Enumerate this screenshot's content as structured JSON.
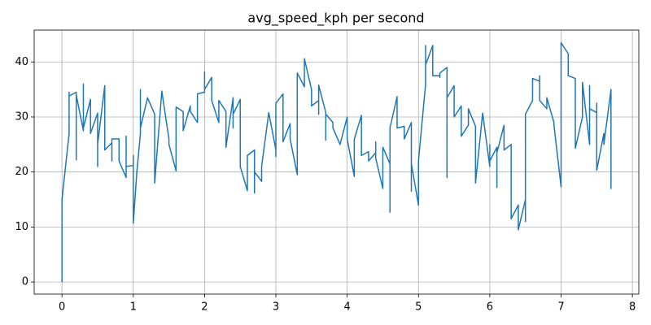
{
  "chart_data": {
    "type": "line",
    "title": "avg_speed_kph per second",
    "x": [
      0,
      0,
      0.1,
      0.1,
      0.1,
      0.2,
      0.2,
      0.2,
      0.3,
      0.3,
      0.3,
      0.4,
      0.4,
      0.5,
      0.5,
      0.5,
      0.6,
      0.6,
      0.7,
      0.7,
      0.7,
      0.8,
      0.8,
      0.9,
      0.9,
      0.9,
      1.0,
      1.0,
      1.0,
      1.05,
      1.1,
      1.1,
      1.1,
      1.2,
      1.3,
      1.3,
      1.4,
      1.5,
      1.5,
      1.6,
      1.6,
      1.7,
      1.7,
      1.8,
      1.8,
      1.9,
      1.9,
      2.0,
      2.0,
      2.0,
      2.1,
      2.1,
      2.2,
      2.2,
      2.3,
      2.3,
      2.4,
      2.4,
      2.4,
      2.5,
      2.5,
      2.6,
      2.6,
      2.7,
      2.7,
      2.7,
      2.8,
      2.8,
      2.9,
      3.0,
      3.0,
      3.0,
      3.1,
      3.1,
      3.2,
      3.2,
      3.3,
      3.3,
      3.4,
      3.4,
      3.5,
      3.5,
      3.6,
      3.6,
      3.6,
      3.7,
      3.7,
      3.7,
      3.8,
      3.8,
      3.9,
      4.0,
      4.0,
      4.1,
      4.1,
      4.2,
      4.2,
      4.3,
      4.3,
      4.4,
      4.4,
      4.4,
      4.5,
      4.5,
      4.6,
      4.6,
      4.6,
      4.7,
      4.7,
      4.8,
      4.8,
      4.9,
      4.9,
      4.9,
      5.0,
      5.0,
      5.1,
      5.1,
      5.1,
      5.2,
      5.2,
      5.3,
      5.3,
      5.3,
      5.4,
      5.4,
      5.4,
      5.5,
      5.5,
      5.6,
      5.6,
      5.7,
      5.7,
      5.8,
      5.8,
      5.9,
      6.0,
      6.0,
      6.0,
      6.1,
      6.1,
      6.1,
      6.2,
      6.2,
      6.3,
      6.3,
      6.4,
      6.4,
      6.5,
      6.5,
      6.5,
      6.6,
      6.6,
      6.7,
      6.7,
      6.7,
      6.8,
      6.8,
      6.9,
      6.9,
      7.0,
      7.0,
      7.1,
      7.1,
      7.2,
      7.2,
      7.3,
      7.3,
      7.4,
      7.4,
      7.4,
      7.5,
      7.5,
      7.5,
      7.6,
      7.6,
      7.7,
      7.7,
      7.7
    ],
    "values": [
      0,
      15,
      27,
      34.5,
      33.8,
      34.5,
      22.2,
      34,
      27.5,
      36,
      28,
      33.2,
      27,
      30.7,
      21,
      25,
      35.7,
      24,
      25.3,
      22,
      26,
      26,
      22,
      19,
      26.5,
      21,
      21.2,
      23,
      10.7,
      20,
      27,
      35,
      28,
      33.5,
      30.5,
      18,
      34.7,
      26,
      25,
      20.2,
      31.8,
      31,
      27.5,
      32,
      31,
      29,
      34.2,
      34.5,
      38.2,
      35,
      37.2,
      33,
      29,
      33,
      31,
      24.5,
      33.5,
      28,
      30.5,
      33.2,
      21,
      16.6,
      23,
      24,
      16.2,
      20,
      18.3,
      21,
      30.8,
      24,
      22.8,
      32.5,
      34.2,
      25.5,
      28.8,
      26,
      19.5,
      38,
      35.5,
      40.6,
      35,
      32,
      33,
      30.5,
      35.8,
      30.8,
      25.8,
      30.5,
      29,
      28,
      25,
      30,
      26,
      19.2,
      26,
      30.3,
      23,
      23.7,
      22,
      23.5,
      25.5,
      22.5,
      17,
      24.5,
      21.5,
      12.7,
      28,
      33.7,
      28,
      28.3,
      26,
      29,
      16.5,
      21.5,
      14,
      22,
      36,
      43,
      39.5,
      43,
      37.5,
      37.5,
      37.2,
      38,
      39,
      19,
      33.5,
      35.7,
      30,
      32,
      26.5,
      28.5,
      31.5,
      28.3,
      18,
      30.7,
      21,
      25,
      22,
      24.5,
      17.2,
      23.5,
      28.5,
      24,
      25,
      11.5,
      14,
      9.5,
      15,
      11,
      30.5,
      33,
      37,
      36.5,
      37.5,
      33,
      31.5,
      33.5,
      29,
      28.5,
      17.3,
      43.5,
      41.5,
      37.5,
      37,
      24.3,
      30,
      36.3,
      25,
      35.7,
      31.5,
      30.8,
      32.5,
      20.3,
      27,
      25,
      35,
      17,
      21
    ],
    "color": "#1f77b4",
    "xlim": [
      -0.39,
      8.09
    ],
    "xticks": [
      0,
      1,
      2,
      3,
      4,
      5,
      6,
      7,
      8
    ],
    "ylim": [
      -2.2,
      45.8
    ],
    "yticks": [
      0,
      10,
      20,
      30,
      40
    ],
    "grid": true
  }
}
